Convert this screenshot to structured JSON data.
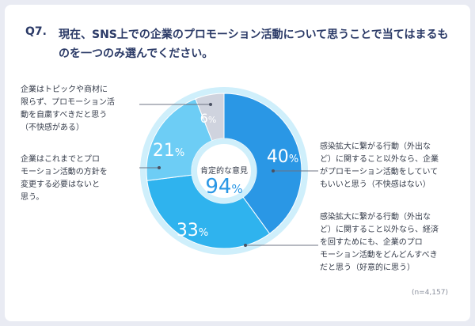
{
  "question": {
    "number": "Q7.",
    "text": "現在、SNS上での企業のプロモーション活動について思うことで当てはまるものを一つのみ選んでください。"
  },
  "center": {
    "label": "肯定的な意見",
    "value": "94",
    "unit": "%"
  },
  "note": "(n=4,157)",
  "slice_labels": [
    {
      "value": "40",
      "unit": "%"
    },
    {
      "value": "33",
      "unit": "%"
    },
    {
      "value": "21",
      "unit": "%"
    },
    {
      "value": "6",
      "unit": "%"
    }
  ],
  "labels": {
    "right_top": [
      "感染拡大に繋がる行動（外出な",
      "ど）に関すること以外なら、企業",
      "がプロモーション活動をしていて",
      "もいいと思う（不快感はない）"
    ],
    "right_bottom": [
      "感染拡大に繋がる行動（外出な",
      "ど）に関すること以外なら、経済",
      "を回すためにも、企業のプロ",
      "モーション活動をどんどんすべき",
      "だと思う（好意的に思う）"
    ],
    "left_top": [
      "企業はトピックや商材に",
      "限らず、プロモーション活",
      "動を自粛すべきだと思う",
      "（不快感がある）"
    ],
    "left_middle": [
      "企業はこれまでとプロ",
      "モーション活動の方針を",
      "変更する必要はないと",
      "思う。"
    ]
  },
  "chart_data": {
    "type": "pie",
    "title": "現在、SNS上での企業のプロモーション活動について思うことで当てはまるものを一つのみ選んでください。",
    "center_label": "肯定的な意見",
    "center_value": 94,
    "categories": [
      "感染拡大に繋がる行動（外出など）に関すること以外なら、企業がプロモーション活動をしていてもいいと思う（不快感はない）",
      "感染拡大に繋がる行動（外出など）に関すること以外なら、経済を回すためにも、企業のプロモーション活動をどんどんすべきだと思う（好意的に思う）",
      "企業はこれまでとプロモーション活動の方針を変更する必要はないと思う。",
      "企業はトピックや商材に限らず、プロモーション活動を自粛すべきだと思う（不快感がある）"
    ],
    "values": [
      40,
      33,
      21,
      6
    ],
    "unit": "%",
    "n": "4,157",
    "colors": [
      "#2a97e5",
      "#2fb3ee",
      "#6dcdf5",
      "#cfd3de"
    ]
  }
}
